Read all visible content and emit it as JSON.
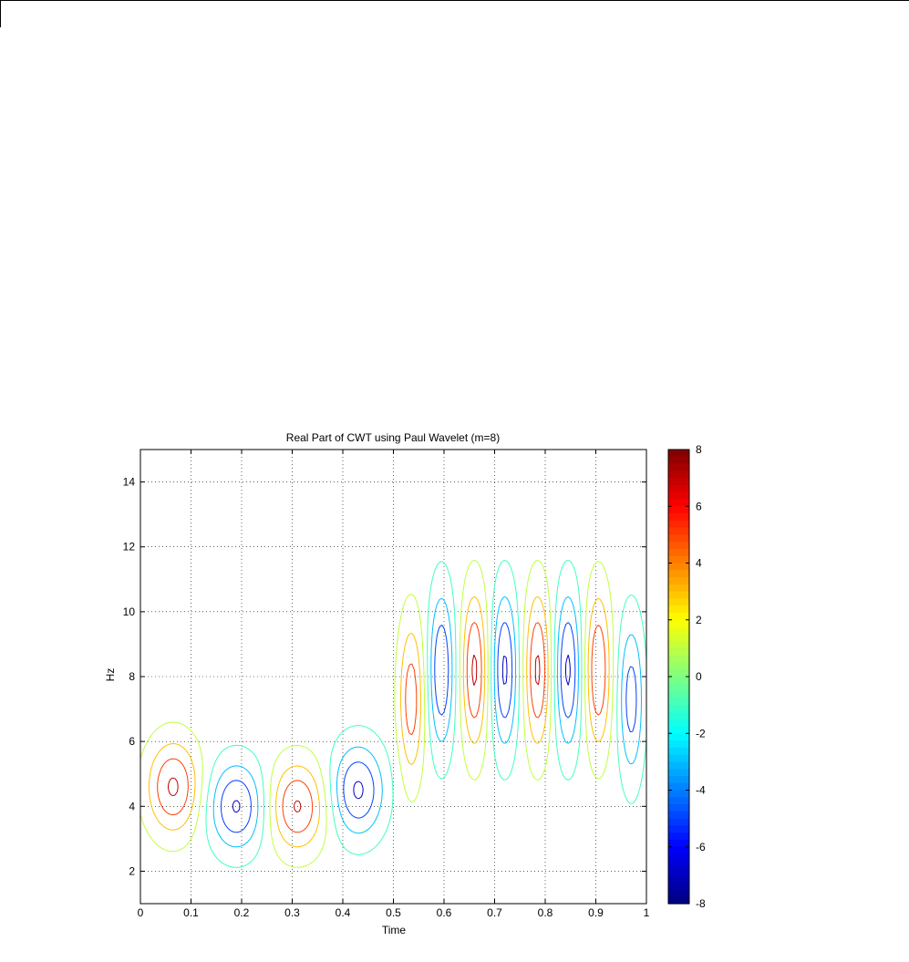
{
  "chart_data": {
    "type": "contour",
    "title": "Real Part of CWT using Paul Wavelet (m=8)",
    "xlabel": "Time",
    "ylabel": "Hz",
    "xlim": [
      0,
      1
    ],
    "ylim": [
      1,
      15
    ],
    "xticks": [
      "0",
      "0.1",
      "0.2",
      "0.3",
      "0.4",
      "0.5",
      "0.6",
      "0.7",
      "0.8",
      "0.9",
      "1"
    ],
    "yticks": [
      "2",
      "4",
      "6",
      "8",
      "10",
      "12",
      "14"
    ],
    "grid": true,
    "grid_style": "dotted",
    "colorbar": {
      "colormap": "jet",
      "range": [
        -8,
        8
      ],
      "ticks": [
        "-8",
        "-6",
        "-4",
        "-2",
        "0",
        "2",
        "4",
        "6",
        "8"
      ],
      "position": "right"
    },
    "contour_levels": [
      -7,
      -5,
      -3,
      -1,
      1,
      3,
      5,
      7
    ],
    "lobes": [
      {
        "t": 0.065,
        "f": 4.6,
        "amp": 7.3,
        "st": 0.036,
        "sf": 1.0
      },
      {
        "t": 0.19,
        "f": 4.0,
        "amp": -7.2,
        "st": 0.038,
        "sf": 0.95
      },
      {
        "t": 0.31,
        "f": 4.0,
        "amp": 7.2,
        "st": 0.038,
        "sf": 0.95
      },
      {
        "t": 0.43,
        "f": 4.5,
        "amp": -7.3,
        "st": 0.036,
        "sf": 1.0
      },
      {
        "t": 0.535,
        "f": 7.3,
        "amp": 6.2,
        "st": 0.017,
        "sf": 1.7
      },
      {
        "t": 0.595,
        "f": 8.2,
        "amp": -7.0,
        "st": 0.017,
        "sf": 1.7
      },
      {
        "t": 0.66,
        "f": 8.2,
        "amp": 7.3,
        "st": 0.017,
        "sf": 1.7
      },
      {
        "t": 0.72,
        "f": 8.2,
        "amp": -7.3,
        "st": 0.017,
        "sf": 1.7
      },
      {
        "t": 0.785,
        "f": 8.2,
        "amp": 7.3,
        "st": 0.017,
        "sf": 1.7
      },
      {
        "t": 0.845,
        "f": 8.2,
        "amp": -7.3,
        "st": 0.017,
        "sf": 1.7
      },
      {
        "t": 0.905,
        "f": 8.2,
        "amp": 7.0,
        "st": 0.017,
        "sf": 1.7
      },
      {
        "t": 0.97,
        "f": 7.3,
        "amp": -6.0,
        "st": 0.017,
        "sf": 1.7
      }
    ]
  }
}
